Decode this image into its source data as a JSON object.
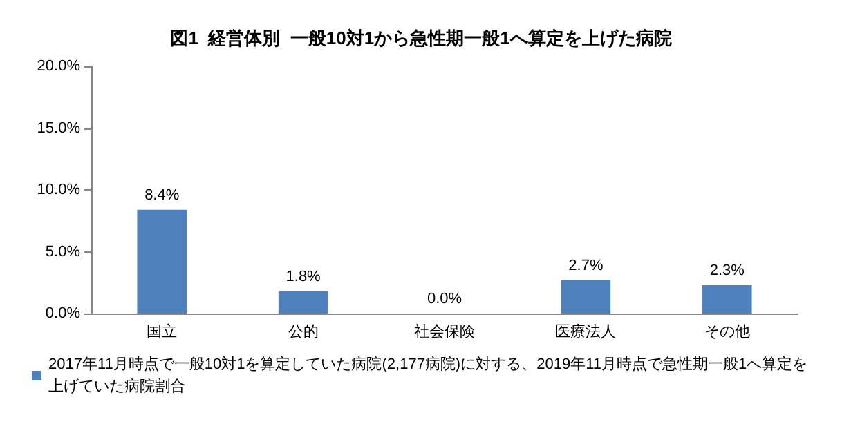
{
  "chart_data": {
    "type": "bar",
    "title": "図1  経営体別  一般10対1から急性期一般1へ算定を上げた病院",
    "categories": [
      "国立",
      "公的",
      "社会保険",
      "医療法人",
      "その他"
    ],
    "series": [
      {
        "name": "2017年11月時点で一般10対1を算定していた病院(2,177病院)に対する、2019年11月時点で急性期一般1へ算定を上げていた病院割合",
        "color": "#4f81bd",
        "values": [
          8.4,
          1.8,
          0.0,
          2.7,
          2.3
        ]
      }
    ],
    "value_labels": [
      "8.4%",
      "1.8%",
      "0.0%",
      "2.7%",
      "2.3%"
    ],
    "ylim": [
      0,
      20
    ],
    "yticks": [
      {
        "value": 0,
        "label": "0.0%"
      },
      {
        "value": 5,
        "label": "5.0%"
      },
      {
        "value": 10,
        "label": "10.0%"
      },
      {
        "value": 15,
        "label": "15.0%"
      },
      {
        "value": 20,
        "label": "20.0%"
      }
    ],
    "grid": false,
    "legend": "bottom"
  }
}
